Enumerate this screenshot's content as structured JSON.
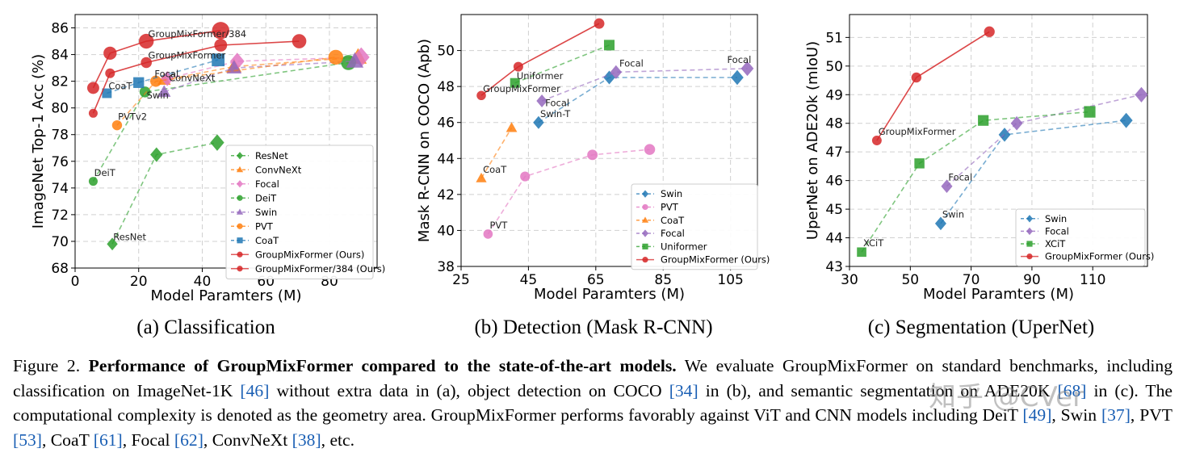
{
  "chart_data": [
    {
      "type": "scatter",
      "subcaption": "(a) Classification",
      "xlabel": "Model Paramters (M)",
      "ylabel": "ImageNet Top-1 Acc (%)",
      "xlim": [
        0,
        95
      ],
      "ylim": [
        68,
        87
      ],
      "xticks": [
        0,
        20,
        40,
        60,
        80
      ],
      "yticks": [
        68,
        70,
        72,
        74,
        76,
        78,
        80,
        82,
        84,
        86
      ],
      "legend_position": "lower-right",
      "series": [
        {
          "name": "ResNet",
          "color": "#2ca02c",
          "marker": "diamond",
          "x": [
            11.7,
            25.6,
            44.7
          ],
          "y": [
            69.8,
            76.5,
            77.4
          ]
        },
        {
          "name": "ConvNeXt",
          "color": "#ff7f0e",
          "marker": "triangle",
          "x": [
            28,
            50,
            89
          ],
          "y": [
            82.1,
            83.1,
            83.8
          ]
        },
        {
          "name": "Focal",
          "color": "#e377c2",
          "marker": "diamond",
          "x": [
            29,
            51,
            90
          ],
          "y": [
            82.2,
            83.5,
            83.8
          ]
        },
        {
          "name": "DeiT",
          "color": "#2ca02c",
          "marker": "circle",
          "x": [
            5.7,
            22,
            86
          ],
          "y": [
            74.5,
            81.2,
            83.4
          ]
        },
        {
          "name": "Swin",
          "color": "#9467bd",
          "marker": "triangle",
          "x": [
            28,
            50,
            88
          ],
          "y": [
            81.2,
            83.0,
            83.5
          ]
        },
        {
          "name": "PVT",
          "color": "#ff7f0e",
          "marker": "circle",
          "x": [
            13.2,
            25.4,
            82
          ],
          "y": [
            78.7,
            82.0,
            83.8
          ]
        },
        {
          "name": "CoaT",
          "color": "#1f77b4",
          "marker": "square",
          "x": [
            10,
            20,
            45
          ],
          "y": [
            81.1,
            81.9,
            83.6
          ]
        },
        {
          "name": "GroupMixFormer (Ours)",
          "color": "#d62728",
          "marker": "circle",
          "x": [
            5.7,
            11.0,
            22.4,
            45.8,
            70.5
          ],
          "y": [
            79.6,
            82.6,
            83.4,
            84.7,
            85.0
          ]
        },
        {
          "name": "GroupMixFormer/384 (Ours)",
          "color": "#d62728",
          "marker": "circle",
          "x": [
            5.7,
            11.0,
            22.4,
            45.8
          ],
          "y": [
            81.5,
            84.1,
            85.0,
            85.8
          ]
        }
      ],
      "annotations": [
        {
          "text": "GroupMixFormer/384",
          "x": 23,
          "y": 85.3
        },
        {
          "text": "GroupMixFormer",
          "x": 23,
          "y": 83.7
        },
        {
          "text": "Focal",
          "x": 25,
          "y": 82.3
        },
        {
          "text": "CoaT",
          "x": 10.5,
          "y": 81.4
        },
        {
          "text": "ConvNeXt",
          "x": 29.5,
          "y": 82.0
        },
        {
          "text": "Swin",
          "x": 22.5,
          "y": 80.7
        },
        {
          "text": "PVTv2",
          "x": 13.5,
          "y": 79.1
        },
        {
          "text": "DeiT",
          "x": 6,
          "y": 74.9
        },
        {
          "text": "ResNet",
          "x": 12,
          "y": 70.1
        }
      ]
    },
    {
      "type": "scatter",
      "subcaption": "(b) Detection (Mask R-CNN)",
      "xlabel": "Model Paramters (M)",
      "ylabel": "Mask  R-CNN on COCO (Apb)",
      "xlim": [
        25,
        113
      ],
      "ylim": [
        38,
        52
      ],
      "xticks": [
        25,
        45,
        65,
        85,
        105
      ],
      "yticks": [
        38,
        40,
        42,
        44,
        46,
        48,
        50
      ],
      "legend_position": "lower-right",
      "series": [
        {
          "name": "Swin",
          "color": "#1f77b4",
          "marker": "diamond",
          "x": [
            48,
            69,
            107
          ],
          "y": [
            46.0,
            48.5,
            48.5
          ]
        },
        {
          "name": "PVT",
          "color": "#e377c2",
          "marker": "circle",
          "x": [
            33,
            44,
            64,
            81
          ],
          "y": [
            39.8,
            43.0,
            44.2,
            44.5
          ]
        },
        {
          "name": "CoaT",
          "color": "#ff7f0e",
          "marker": "triangle",
          "x": [
            31,
            40
          ],
          "y": [
            42.9,
            45.7
          ]
        },
        {
          "name": "Focal",
          "color": "#9467bd",
          "marker": "diamond",
          "x": [
            49,
            71,
            110
          ],
          "y": [
            47.2,
            48.8,
            49.0
          ]
        },
        {
          "name": "Uniformer",
          "color": "#2ca02c",
          "marker": "square",
          "x": [
            41,
            69
          ],
          "y": [
            48.2,
            50.3
          ]
        },
        {
          "name": "GroupMixFormer (Ours)",
          "color": "#d62728",
          "marker": "circle",
          "x": [
            31,
            42,
            66
          ],
          "y": [
            47.5,
            49.1,
            51.5
          ]
        }
      ],
      "annotations": [
        {
          "text": "Focal",
          "x": 72,
          "y": 49.1
        },
        {
          "text": "Focal",
          "x": 104,
          "y": 49.3
        },
        {
          "text": "Uniformer",
          "x": 41.5,
          "y": 48.4
        },
        {
          "text": "GroupMixFormer",
          "x": 31.5,
          "y": 47.7
        },
        {
          "text": "Focal",
          "x": 50,
          "y": 46.9
        },
        {
          "text": "Swin-T",
          "x": 48.5,
          "y": 46.3
        },
        {
          "text": "CoaT",
          "x": 31.5,
          "y": 43.2
        },
        {
          "text": "PVT",
          "x": 33.5,
          "y": 40.1
        }
      ]
    },
    {
      "type": "scatter",
      "subcaption": "(c) Segmentation (UperNet)",
      "xlabel": "Model Paramters (M)",
      "ylabel": "UperNet on ADE20k (mIoU)",
      "xlim": [
        30,
        128
      ],
      "ylim": [
        43,
        51.8
      ],
      "xticks": [
        30,
        50,
        70,
        90,
        110
      ],
      "yticks": [
        43,
        44,
        45,
        46,
        47,
        48,
        49,
        50,
        51
      ],
      "legend_position": "lower-right",
      "series": [
        {
          "name": "Swin",
          "color": "#1f77b4",
          "marker": "diamond",
          "x": [
            60,
            81,
            121
          ],
          "y": [
            44.5,
            47.6,
            48.1
          ]
        },
        {
          "name": "Focal",
          "color": "#9467bd",
          "marker": "diamond",
          "x": [
            62,
            85,
            126
          ],
          "y": [
            45.8,
            48.0,
            49.0
          ]
        },
        {
          "name": "XCiT",
          "color": "#2ca02c",
          "marker": "square",
          "x": [
            34,
            53,
            74,
            109
          ],
          "y": [
            43.5,
            46.6,
            48.1,
            48.4
          ]
        },
        {
          "name": "GroupMixFormer (Ours)",
          "color": "#d62728",
          "marker": "circle",
          "x": [
            39,
            52,
            76
          ],
          "y": [
            47.4,
            49.6,
            51.2
          ]
        }
      ],
      "annotations": [
        {
          "text": "GroupMixFormer",
          "x": 39.5,
          "y": 47.6
        },
        {
          "text": "Focal",
          "x": 62.5,
          "y": 46.0
        },
        {
          "text": "Swin",
          "x": 60.5,
          "y": 44.7
        },
        {
          "text": "XCiT",
          "x": 34.5,
          "y": 43.7
        }
      ]
    }
  ],
  "caption": {
    "figure_label": "Figure 2.",
    "bold_title": "Performance of GroupMixFormer compared to the state-of-the-art models.",
    "seg1": " We evaluate GroupMixFormer on standard benchmarks, including classification on ImageNet-1K ",
    "ref1": "[46]",
    "seg2": " without extra data in (a), object detection on COCO ",
    "ref2": "[34]",
    "seg3": " in (b), and semantic segmentation on ADE20K ",
    "ref3": "[68]",
    "seg4": " in (c). The computational complexity is denoted as the geometry area. GroupMixFormer performs favorably against ViT and CNN models including DeiT ",
    "ref4": "[49]",
    "seg5": ", Swin ",
    "ref5": "[37]",
    "seg6": ", PVT ",
    "ref6": "[53]",
    "seg7": ", CoaT ",
    "ref7": "[61]",
    "seg8": ", Focal ",
    "ref8": "[62]",
    "seg9": ", ConvNeXt ",
    "ref9": "[38]",
    "seg10": ", etc."
  },
  "watermark": "知乎 @CVer"
}
